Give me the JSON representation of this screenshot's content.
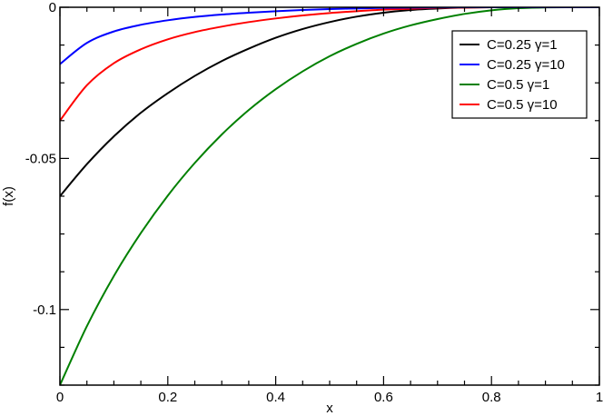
{
  "chart_data": {
    "type": "line",
    "title": "",
    "xlabel": "x",
    "ylabel": "f(x)",
    "xlim": [
      0,
      1
    ],
    "ylim": [
      -0.125,
      0
    ],
    "xticks": [
      0,
      0.2,
      0.4,
      0.6,
      0.8,
      1
    ],
    "xtick_labels": [
      "0",
      "0.2",
      "0.4",
      "0.6",
      "0.8",
      "1"
    ],
    "yticks": [
      -0.1,
      -0.05,
      0
    ],
    "ytick_labels": [
      "-0.1",
      "-0.05",
      "0"
    ],
    "grid": false,
    "legend_position": "top-right",
    "x": [
      0,
      0.05,
      0.1,
      0.15,
      0.2,
      0.25,
      0.3,
      0.35,
      0.4,
      0.45,
      0.5,
      0.55,
      0.6,
      0.65,
      0.7,
      0.75,
      0.8,
      0.85,
      0.9,
      0.95,
      1
    ],
    "series": [
      {
        "name": "C=0.25 γ=1",
        "color": "#000000",
        "values": [
          -0.0625,
          -0.0519,
          -0.0427,
          -0.0349,
          -0.0284,
          -0.0227,
          -0.0178,
          -0.0137,
          -0.0101,
          -0.0072,
          -0.0049,
          -0.0031,
          -0.0018,
          -0.0009,
          -0.0004,
          -0.0001,
          0,
          0,
          0,
          0,
          0
        ]
      },
      {
        "name": "C=0.25 γ=10",
        "color": "#0000ff",
        "values": [
          -0.0188,
          -0.0118,
          -0.008,
          -0.0058,
          -0.0043,
          -0.0032,
          -0.0024,
          -0.0018,
          -0.0013,
          -0.0009,
          -0.0006,
          -0.0004,
          -0.0002,
          -0.0001,
          -5e-05,
          0,
          0,
          0,
          0,
          0,
          0
        ]
      },
      {
        "name": "C=0.5 γ=1",
        "color": "#008000",
        "values": [
          -0.125,
          -0.1055,
          -0.0889,
          -0.0747,
          -0.0623,
          -0.0515,
          -0.0421,
          -0.034,
          -0.0271,
          -0.0212,
          -0.0162,
          -0.0121,
          -0.0087,
          -0.006,
          -0.0039,
          -0.0022,
          -0.001,
          -0.0003,
          -5e-05,
          0,
          0
        ]
      },
      {
        "name": "C=0.5 γ=10",
        "color": "#ff0000",
        "values": [
          -0.0375,
          -0.0258,
          -0.0185,
          -0.0139,
          -0.0106,
          -0.0082,
          -0.0064,
          -0.0049,
          -0.0037,
          -0.0027,
          -0.0019,
          -0.0013,
          -0.0008,
          -0.0005,
          -0.0002,
          -0.0001,
          0,
          0,
          0,
          0,
          0
        ]
      }
    ]
  }
}
